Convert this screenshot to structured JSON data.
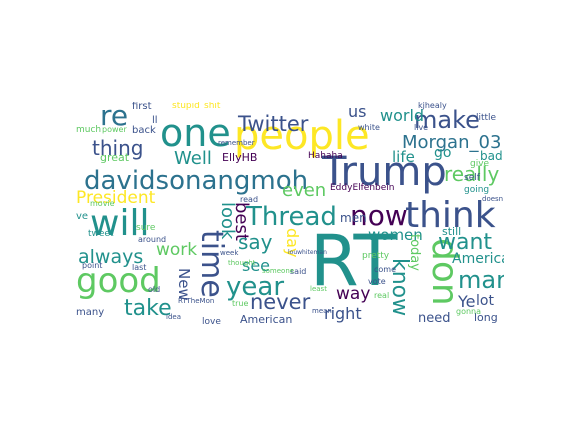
{
  "words": {
    "rt": "RT",
    "people": "people",
    "trump": "Trump",
    "one": "one",
    "think": "think",
    "will": "will",
    "good": "good",
    "davidsonangmoh": "davidsonangmoh",
    "thread": "Thread",
    "now": "now",
    "don": "don",
    "time": "time",
    "make": "make",
    "twitter": "Twitter",
    "morgan": "Morgan_03",
    "re": "re",
    "thing": "thing",
    "year": "year",
    "man": "man",
    "know": "know",
    "take": "take",
    "never": "never",
    "want": "want",
    "always": "always",
    "really": "really",
    "world": "world",
    "president": "President",
    "well": "Well",
    "even": "even",
    "best": "best",
    "look": "look",
    "say": "say",
    "see": "see",
    "work": "work",
    "day": "day",
    "way": "way",
    "right": "right",
    "america": "America",
    "women": "women",
    "life": "life",
    "go": "go",
    "ye": "Ye",
    "lot": "lot",
    "new": "New",
    "us": "us",
    "american": "American",
    "need": "need",
    "long": "long",
    "still": "still",
    "today": "today",
    "bad": "bad",
    "ellyhb": "EllyHB",
    "eddyelfenbein": "EddyElfenbein",
    "men": "men",
    "great": "great",
    "hahaha": "Hahaha",
    "louwhiteman": "louwhiteman",
    "stupid": "stupid",
    "shit": "shit",
    "first": "first",
    "back": "back",
    "ll": "ll",
    "ve": "ve",
    "many": "many",
    "love": "love",
    "said": "said",
    "read": "read",
    "give": "give",
    "going": "going",
    "white": "white",
    "live": "live",
    "little": "little",
    "kjhealy": "kjhealy",
    "tweet": "tweet",
    "sure": "sure",
    "around": "around",
    "self": "self",
    "much": "much",
    "power": "power",
    "last": "last",
    "point": "point",
    "pretty": "pretty",
    "movie": "movie",
    "vote": "vote",
    "mean": "mean",
    "least": "least",
    "thought": "thought",
    "someone": "someone",
    "come": "come",
    "remember": "remember",
    "old": "old",
    "idea": "idea",
    "true": "true",
    "week": "week",
    "real": "real",
    "doesn": "doesn",
    "gonna": "gonna",
    "rtthemon": "RTTheMon"
  }
}
